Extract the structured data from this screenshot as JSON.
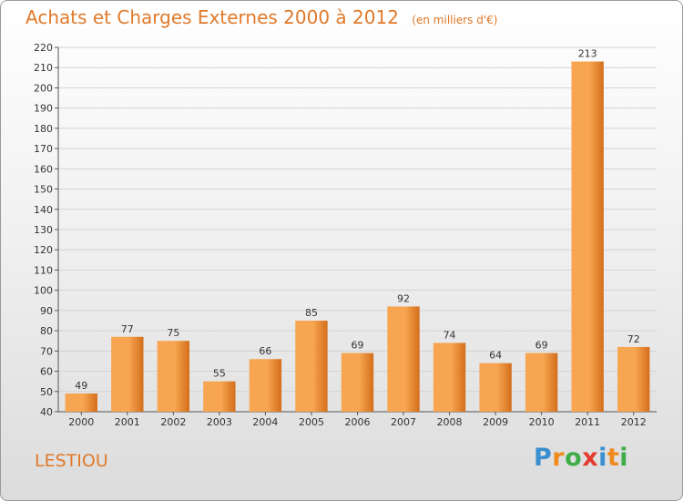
{
  "header": {
    "title": "Achats et Charges Externes 2000 à 2012",
    "unit": "(en milliers d'€)"
  },
  "commune": "LESTIOU",
  "logo": {
    "letters": [
      "P",
      "r",
      "o",
      "x",
      "i",
      "t",
      "i"
    ],
    "colors": [
      "#3a8fd0",
      "#f08a1c",
      "#3fae49",
      "#e43b2e",
      "#3a8fd0",
      "#f08a1c",
      "#3fae49"
    ]
  },
  "colors": {
    "bar_light": "#f7a550",
    "bar_dark": "#d46e1c",
    "title": "#e07a2b"
  },
  "chart_data": {
    "type": "bar",
    "title": "Achats et Charges Externes 2000 à 2012",
    "categories": [
      "2000",
      "2001",
      "2002",
      "2003",
      "2004",
      "2005",
      "2006",
      "2007",
      "2008",
      "2009",
      "2010",
      "2011",
      "2012"
    ],
    "values": [
      49,
      77,
      75,
      55,
      66,
      85,
      69,
      92,
      74,
      64,
      69,
      213,
      72
    ],
    "ylim": [
      40,
      220
    ],
    "yticks": [
      40,
      50,
      60,
      70,
      80,
      90,
      100,
      110,
      120,
      130,
      140,
      150,
      160,
      170,
      180,
      190,
      200,
      210,
      220
    ],
    "grid": true,
    "xlabel": "",
    "ylabel": ""
  }
}
